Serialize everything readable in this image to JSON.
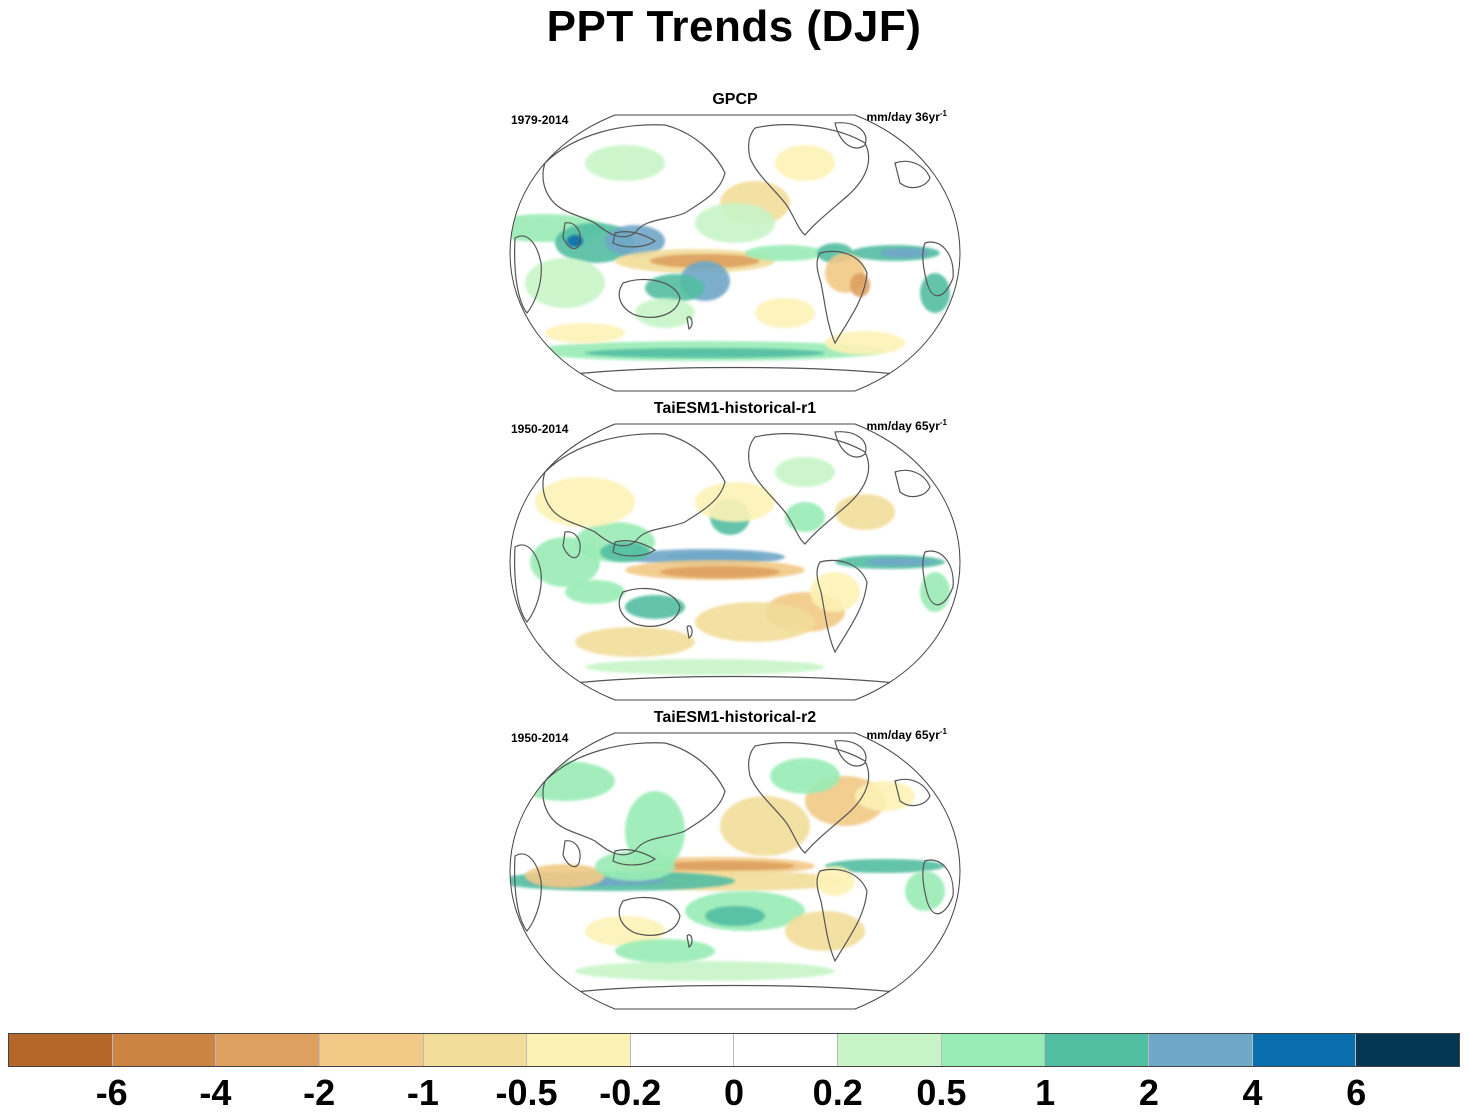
{
  "title": "PPT Trends (DJF)",
  "panels": [
    {
      "title": "GPCP",
      "period": "1979-2014",
      "units": "mm/day 36yr",
      "units_sup": "-1"
    },
    {
      "title": "TaiESM1-historical-r1",
      "period": "1950-2014",
      "units": "mm/day 65yr",
      "units_sup": "-1"
    },
    {
      "title": "TaiESM1-historical-r2",
      "period": "1950-2014",
      "units": "mm/day 65yr",
      "units_sup": "-1"
    }
  ],
  "colorbar": {
    "colors": [
      "#b5672a",
      "#cc8443",
      "#dda05e",
      "#f2c986",
      "#f2dd9a",
      "#fdf2b5",
      "#ffffff",
      "#ffffff",
      "#c8f5c8",
      "#99ecb5",
      "#52bea2",
      "#6fa7c8",
      "#086eac",
      "#053753"
    ],
    "labels": [
      "-6",
      "-4",
      "-2",
      "-1",
      "-0.5",
      "-0.2",
      "0",
      "0.2",
      "0.5",
      "1",
      "2",
      "4",
      "6"
    ]
  },
  "colors": {
    "coastline": "#555555",
    "map_border": "#444444"
  }
}
